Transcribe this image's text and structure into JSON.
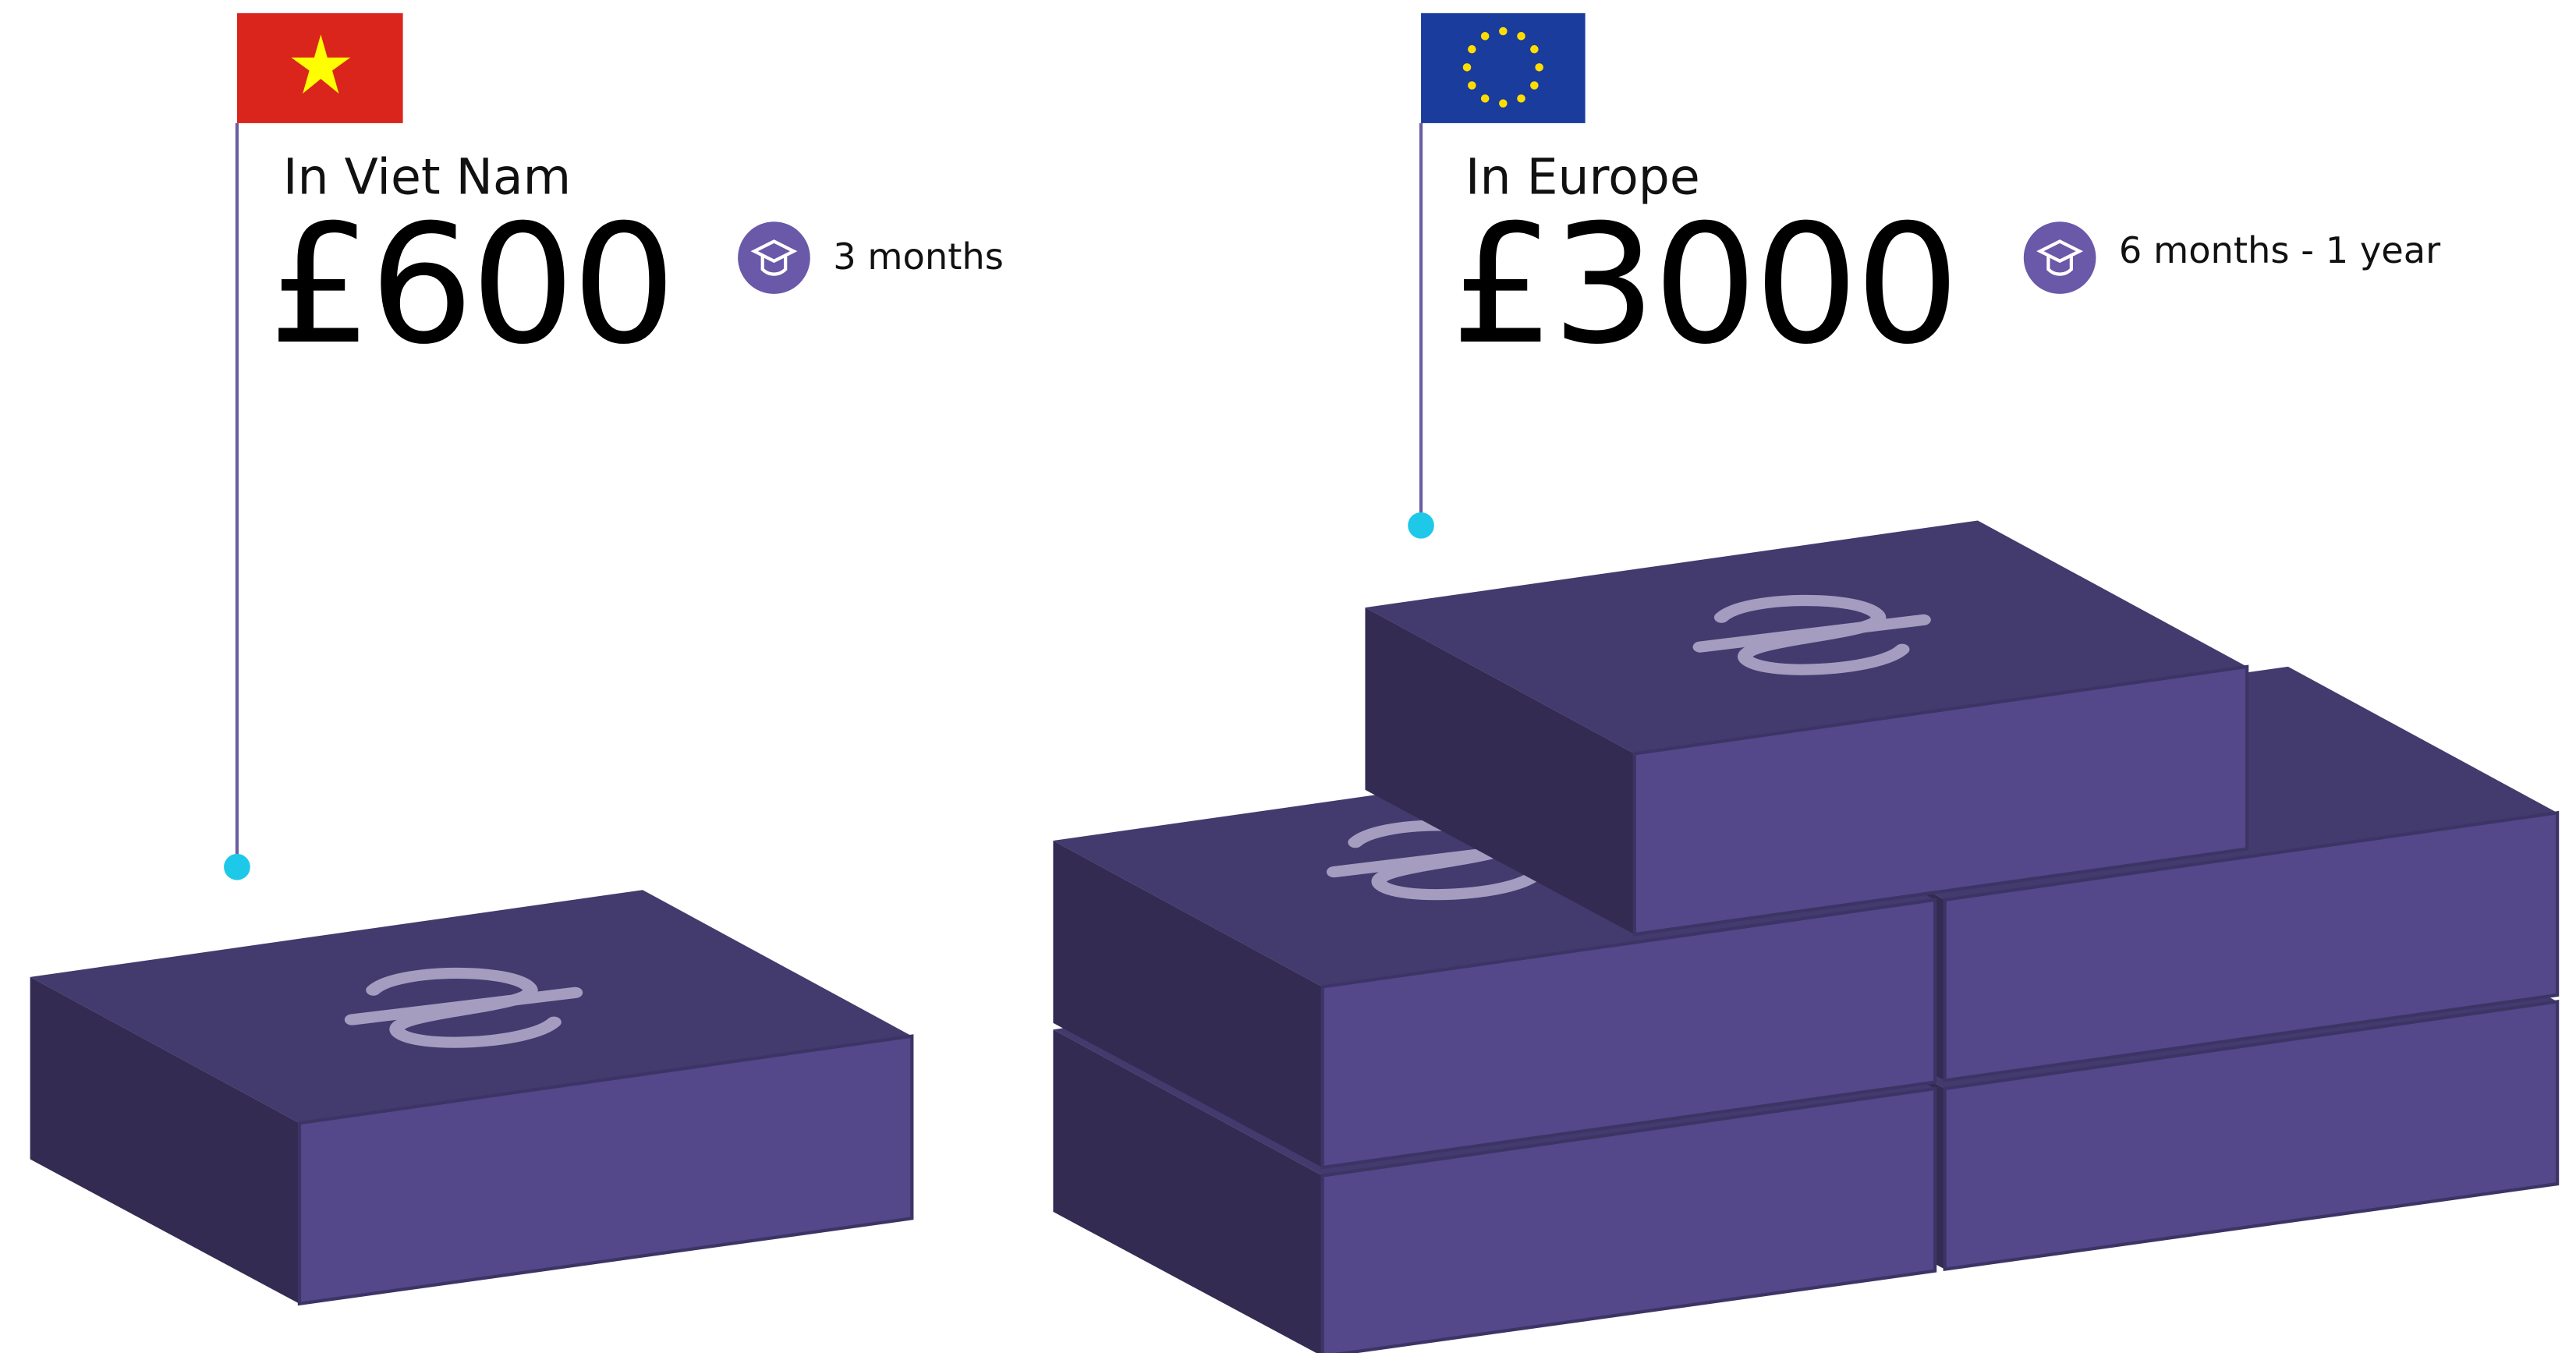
{
  "items": [
    {
      "label": "In Viet Nam",
      "price": "£600",
      "duration": "3 months"
    },
    {
      "label": "In Europe",
      "price": "£3000",
      "duration": "6 months - 1 year"
    }
  ]
}
